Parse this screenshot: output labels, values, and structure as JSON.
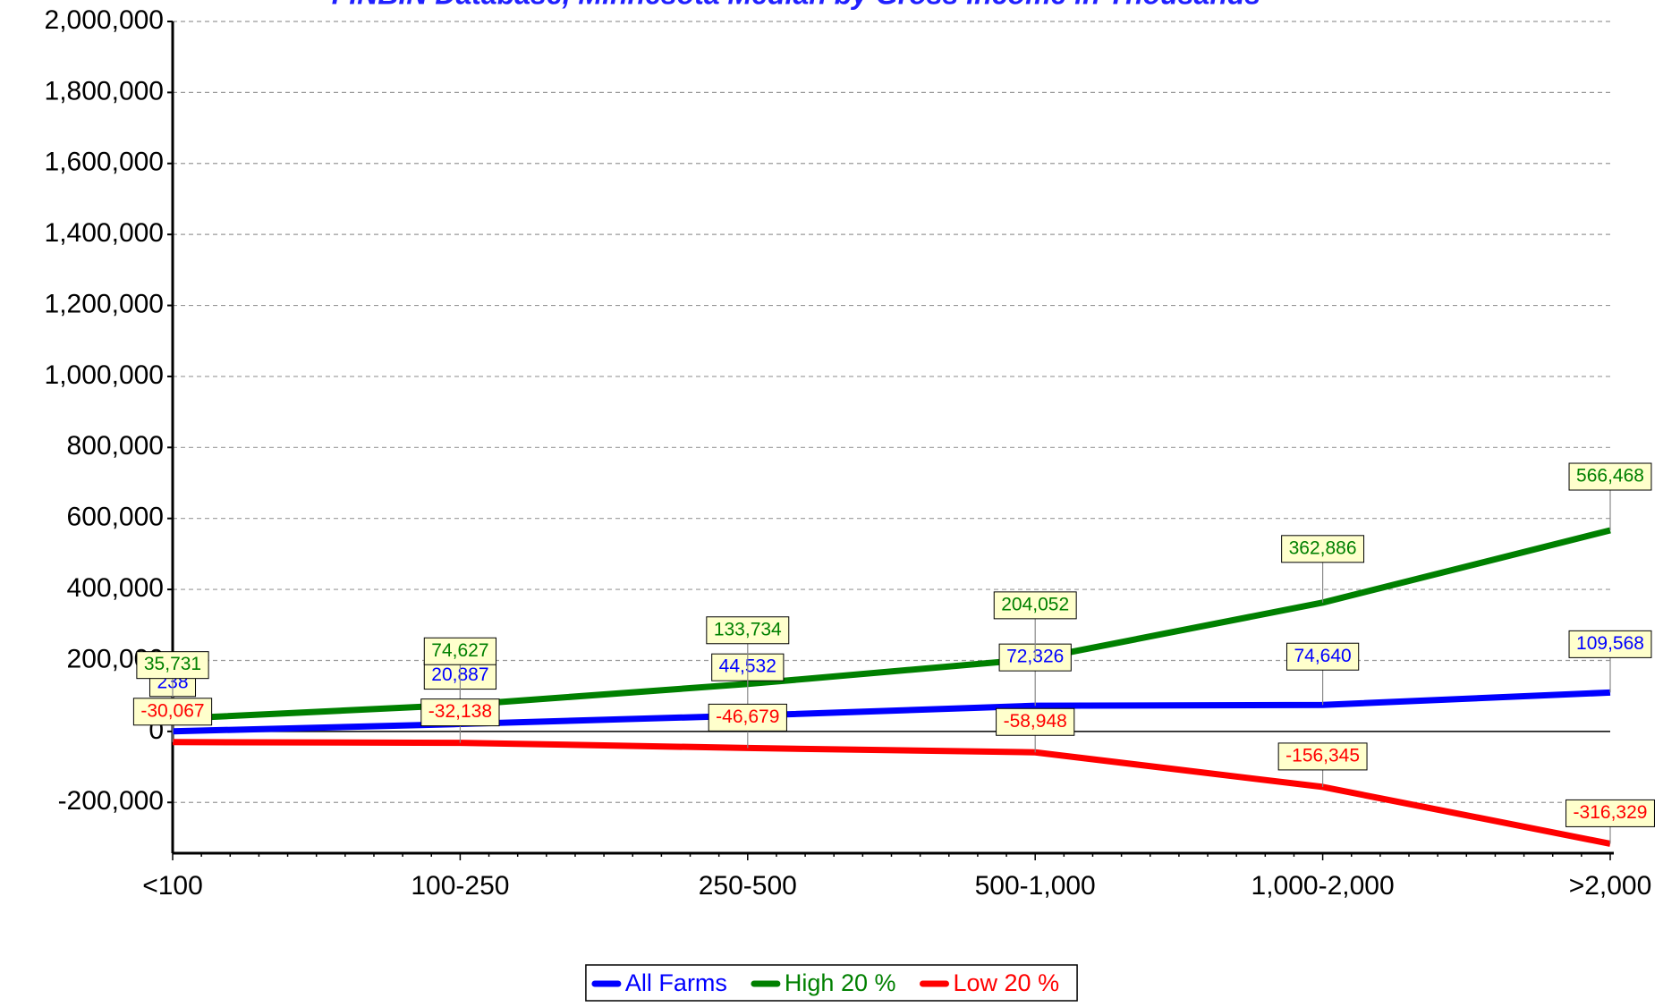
{
  "chart_data": {
    "type": "line",
    "title": "FINBIN Database, Minnesota Median by Gross Income in Thousands",
    "categories": [
      "<100",
      "100-250",
      "250-500",
      "500-1,000",
      "1,000-2,000",
      ">2,000"
    ],
    "series": [
      {
        "name": "All Farms",
        "color": "#0000ff",
        "values": [
          238,
          20887,
          44532,
          72326,
          74640,
          109568
        ],
        "value_labels": [
          "238",
          "20,887",
          "44,532",
          "72,326",
          "74,640",
          "109,568"
        ]
      },
      {
        "name": "High 20 %",
        "color": "#008000",
        "values": [
          35731,
          74627,
          133734,
          204052,
          362886,
          566468
        ],
        "value_labels": [
          "35,731",
          "74,627",
          "133,734",
          "204,052",
          "362,886",
          "566,468"
        ]
      },
      {
        "name": "Low 20 %",
        "color": "#ff0000",
        "values": [
          -30067,
          -32138,
          -46679,
          -58948,
          -156345,
          -316329
        ],
        "value_labels": [
          "-30,067",
          "-32,138",
          "-46,679",
          "-58,948",
          "-156,345",
          "-316,329"
        ]
      }
    ],
    "ylim": [
      -343000,
      2000000
    ],
    "yticks": [
      {
        "value": -200000,
        "label": "-200,000"
      },
      0,
      {
        "value": 200000,
        "label": "200,000"
      },
      {
        "value": 400000,
        "label": "400,000"
      },
      {
        "value": 600000,
        "label": "600,000"
      },
      {
        "value": 800000,
        "label": "800,000"
      },
      {
        "value": 1000000,
        "label": "1,000,000"
      },
      {
        "value": 1200000,
        "label": "1,200,000"
      },
      {
        "value": 1400000,
        "label": "1,400,000"
      },
      {
        "value": 1600000,
        "label": "1,600,000"
      },
      {
        "value": 1800000,
        "label": "1,800,000"
      },
      {
        "value": 2000000,
        "label": "2,000,000"
      }
    ],
    "grid": true,
    "legend": "bottom"
  }
}
